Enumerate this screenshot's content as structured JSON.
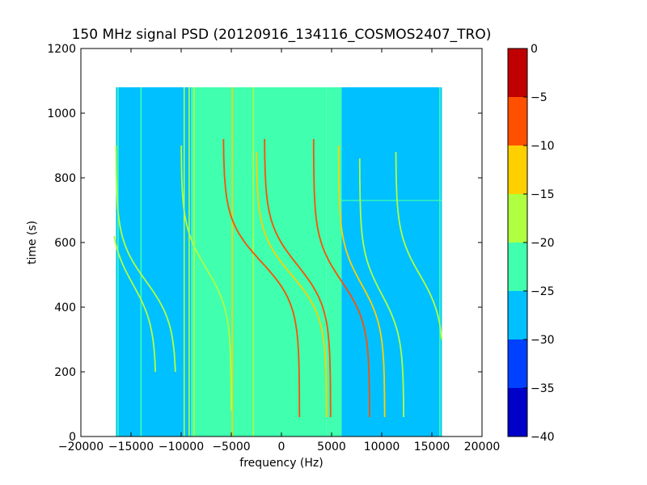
{
  "chart_data": {
    "type": "heatmap",
    "title": "150 MHz signal PSD (20120916_134116_COSMOS2407_TRO)",
    "xlabel": "frequency (Hz)",
    "ylabel": "time (s)",
    "xlim": [
      -20000,
      20000
    ],
    "ylim": [
      0,
      1200
    ],
    "x_ticks": [
      -20000,
      -15000,
      -10000,
      -5000,
      0,
      5000,
      10000,
      15000,
      20000
    ],
    "y_ticks": [
      0,
      200,
      400,
      600,
      800,
      1000,
      1200
    ],
    "data_extent": {
      "x": [
        -16500,
        16000
      ],
      "y": [
        0,
        1080
      ]
    },
    "colorbar": {
      "range": [
        -40,
        0
      ],
      "ticks": [
        0,
        -5,
        -10,
        -15,
        -20,
        -25,
        -30,
        -35,
        -40
      ],
      "levels": [
        {
          "from": -40,
          "to": -35,
          "color": "#0000c8"
        },
        {
          "from": -35,
          "to": -30,
          "color": "#0040ff"
        },
        {
          "from": -30,
          "to": -25,
          "color": "#00c0ff"
        },
        {
          "from": -25,
          "to": -20,
          "color": "#40ffaf"
        },
        {
          "from": -20,
          "to": -15,
          "color": "#b0ff40"
        },
        {
          "from": -15,
          "to": -10,
          "color": "#ffd000"
        },
        {
          "from": -10,
          "to": -5,
          "color": "#ff5000"
        },
        {
          "from": -5,
          "to": 0,
          "color": "#c00000"
        }
      ]
    },
    "background_regions": [
      {
        "x": [
          -16500,
          -9000
        ],
        "y": [
          0,
          1080
        ],
        "level": -27
      },
      {
        "x": [
          -9000,
          4500
        ],
        "y": [
          0,
          1080
        ],
        "level": -23
      },
      {
        "x": [
          4500,
          6000
        ],
        "y": [
          0,
          1080
        ],
        "level": -25
      },
      {
        "x": [
          6000,
          16000
        ],
        "y": [
          0,
          1080
        ],
        "level": -27
      }
    ],
    "vertical_lines": [
      {
        "x": -16300,
        "level": -22
      },
      {
        "x": -14000,
        "level": -22
      },
      {
        "x": -9700,
        "level": -17
      },
      {
        "x": -9200,
        "level": -17
      },
      {
        "x": -8700,
        "level": -17
      },
      {
        "x": -4900,
        "level": -15
      },
      {
        "x": -2800,
        "level": -20
      },
      {
        "x": 15800,
        "level": -22
      }
    ],
    "horizontal_lines": [
      {
        "y": 730,
        "x": [
          6000,
          16000
        ],
        "level": -22
      }
    ],
    "doppler_traces": [
      {
        "center_freq": -13500,
        "tca": 480,
        "half_span": 3000,
        "t_start": 200,
        "t_end": 900,
        "level": -17
      },
      {
        "center_freq": -14800,
        "tca": 470,
        "half_span": 2300,
        "t_start": 200,
        "t_end": 620,
        "level": -19
      },
      {
        "center_freq": -7500,
        "tca": 520,
        "half_span": 2500,
        "t_start": 80,
        "t_end": 900,
        "level": -19
      },
      {
        "center_freq": -2000,
        "tca": 540,
        "half_span": 3800,
        "t_start": 60,
        "t_end": 920,
        "level": -7
      },
      {
        "center_freq": 1600,
        "tca": 530,
        "half_span": 3300,
        "t_start": 60,
        "t_end": 920,
        "level": -7
      },
      {
        "center_freq": 1000,
        "tca": 500,
        "half_span": 3500,
        "t_start": 60,
        "t_end": 880,
        "level": -14
      },
      {
        "center_freq": 6000,
        "tca": 480,
        "half_span": 2800,
        "t_start": 60,
        "t_end": 920,
        "level": -7
      },
      {
        "center_freq": 8000,
        "tca": 470,
        "half_span": 2300,
        "t_start": 60,
        "t_end": 900,
        "level": -15
      },
      {
        "center_freq": 10000,
        "tca": 440,
        "half_span": 2200,
        "t_start": 60,
        "t_end": 860,
        "level": -17
      },
      {
        "center_freq": 13800,
        "tca": 500,
        "half_span": 2400,
        "t_start": 300,
        "t_end": 880,
        "level": -18
      }
    ]
  }
}
